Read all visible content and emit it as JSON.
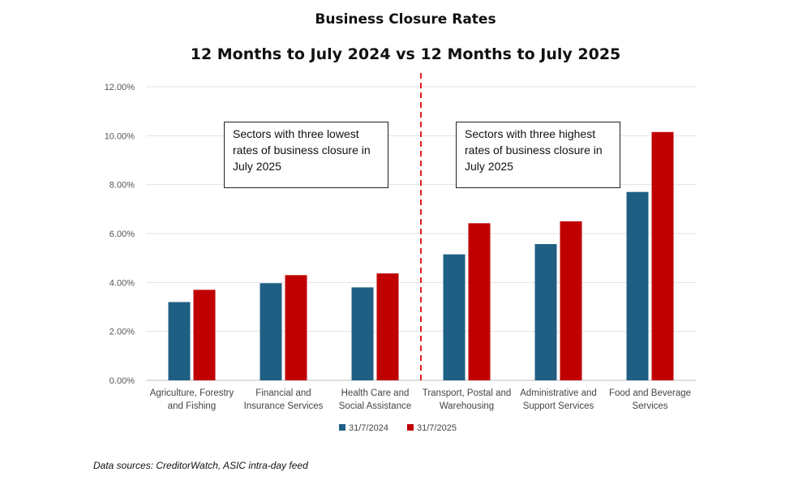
{
  "chart_data": {
    "type": "bar",
    "title": "Business Closure Rates",
    "subtitle": "12 Months to July 2024 vs 12 Months to July 2025",
    "categories": [
      [
        "Agriculture, Forestry",
        "and Fishing"
      ],
      [
        "Financial and",
        "Insurance Services"
      ],
      [
        "Health Care and",
        "Social Assistance"
      ],
      [
        "Transport, Postal and",
        "Warehousing"
      ],
      [
        "Administrative and",
        "Support Services"
      ],
      [
        "Food and Beverage",
        "Services"
      ]
    ],
    "series": [
      {
        "name": "31/7/2024",
        "color": "#1f5f84",
        "values": [
          3.2,
          3.97,
          3.8,
          5.15,
          5.57,
          7.7
        ]
      },
      {
        "name": "31/7/2025",
        "color": "#c00000",
        "values": [
          3.7,
          4.3,
          4.37,
          6.42,
          6.5,
          10.15
        ]
      }
    ],
    "ylim": [
      0,
      12
    ],
    "yticks": [
      "0.00%",
      "2.00%",
      "4.00%",
      "6.00%",
      "8.00%",
      "10.00%",
      "12.00%"
    ],
    "ylabel": "",
    "xlabel": "",
    "grid": true,
    "legend_position": "bottom",
    "annotations": [
      "Sectors with three lowest rates of business closure in July 2025",
      "Sectors with three highest rates of business closure in July 2025"
    ],
    "divider_color": "#e02020"
  },
  "source": "Data sources: CreditorWatch, ASIC intra-day feed"
}
